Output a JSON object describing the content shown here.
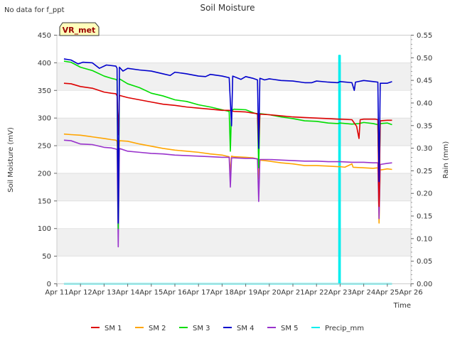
{
  "note": "No data for f_ppt",
  "chart_data": {
    "type": "line",
    "title": "Soil Moisture",
    "badge": "VR_met",
    "xlabel": "Time",
    "ylabel": "Soil Moisture (mV)",
    "y2label": "Rain (mm)",
    "xlim": [
      11,
      26
    ],
    "ylim": [
      0,
      450
    ],
    "y2lim": [
      0,
      0.55
    ],
    "x_ticks": [
      {
        "value": 11,
        "label": "Apr 11"
      },
      {
        "value": 12,
        "label": "Apr 12"
      },
      {
        "value": 13,
        "label": "Apr 13"
      },
      {
        "value": 14,
        "label": "Apr 14"
      },
      {
        "value": 15,
        "label": "Apr 15"
      },
      {
        "value": 16,
        "label": "Apr 16"
      },
      {
        "value": 17,
        "label": "Apr 17"
      },
      {
        "value": 18,
        "label": "Apr 18"
      },
      {
        "value": 19,
        "label": "Apr 19"
      },
      {
        "value": 20,
        "label": "Apr 20"
      },
      {
        "value": 21,
        "label": "Apr 21"
      },
      {
        "value": 22,
        "label": "Apr 22"
      },
      {
        "value": 23,
        "label": "Apr 23"
      },
      {
        "value": 24,
        "label": "Apr 24"
      },
      {
        "value": 25,
        "label": "Apr 25"
      },
      {
        "value": 26,
        "label": "Apr 26"
      }
    ],
    "y_ticks": [
      0,
      50,
      100,
      150,
      200,
      250,
      300,
      350,
      400,
      450
    ],
    "y2_ticks": [
      "0.00",
      "0.05",
      "0.10",
      "0.15",
      "0.20",
      "0.25",
      "0.30",
      "0.35",
      "0.40",
      "0.45",
      "0.50",
      "0.55"
    ],
    "series": [
      {
        "name": "SM 1",
        "color": "#dd0000",
        "axis": "left",
        "points": [
          [
            11.3,
            363
          ],
          [
            11.6,
            362
          ],
          [
            12.0,
            357
          ],
          [
            12.5,
            354
          ],
          [
            13.0,
            347
          ],
          [
            13.3,
            345
          ],
          [
            13.5,
            344
          ],
          [
            13.55,
            340
          ],
          [
            13.6,
            270
          ],
          [
            13.65,
            341
          ],
          [
            14.0,
            337
          ],
          [
            14.5,
            333
          ],
          [
            15.0,
            329
          ],
          [
            15.5,
            325
          ],
          [
            16.0,
            323
          ],
          [
            16.5,
            320
          ],
          [
            17.0,
            318
          ],
          [
            17.5,
            316
          ],
          [
            18.0,
            314
          ],
          [
            18.3,
            314
          ],
          [
            18.5,
            312
          ],
          [
            19.0,
            311
          ],
          [
            19.3,
            309
          ],
          [
            19.5,
            308
          ],
          [
            19.55,
            250
          ],
          [
            19.6,
            307
          ],
          [
            20.0,
            306
          ],
          [
            20.5,
            304
          ],
          [
            21.0,
            302
          ],
          [
            21.5,
            301
          ],
          [
            22.0,
            300
          ],
          [
            22.5,
            299
          ],
          [
            22.9,
            298
          ],
          [
            23.0,
            298
          ],
          [
            23.5,
            297
          ],
          [
            23.7,
            285
          ],
          [
            23.8,
            263
          ],
          [
            23.85,
            297
          ],
          [
            24.0,
            298
          ],
          [
            24.5,
            298
          ],
          [
            24.6,
            297
          ],
          [
            24.65,
            140
          ],
          [
            24.7,
            295
          ],
          [
            25.0,
            296
          ],
          [
            25.2,
            296
          ]
        ]
      },
      {
        "name": "SM 2",
        "color": "#ffa500",
        "axis": "left",
        "points": [
          [
            11.3,
            271
          ],
          [
            11.6,
            270
          ],
          [
            12.0,
            269
          ],
          [
            12.5,
            266
          ],
          [
            13.0,
            263
          ],
          [
            13.3,
            261
          ],
          [
            13.5,
            260
          ],
          [
            13.55,
            258
          ],
          [
            13.6,
            210
          ],
          [
            13.65,
            259
          ],
          [
            14.0,
            258
          ],
          [
            14.5,
            253
          ],
          [
            15.0,
            249
          ],
          [
            15.5,
            245
          ],
          [
            16.0,
            242
          ],
          [
            16.5,
            240
          ],
          [
            17.0,
            238
          ],
          [
            17.5,
            235
          ],
          [
            18.0,
            233
          ],
          [
            18.3,
            230
          ],
          [
            18.35,
            200
          ],
          [
            18.4,
            231
          ],
          [
            18.5,
            230
          ],
          [
            19.0,
            229
          ],
          [
            19.3,
            228
          ],
          [
            19.5,
            226
          ],
          [
            19.55,
            190
          ],
          [
            19.6,
            224
          ],
          [
            20.0,
            222
          ],
          [
            20.5,
            219
          ],
          [
            21.0,
            217
          ],
          [
            21.5,
            214
          ],
          [
            22.0,
            214
          ],
          [
            22.5,
            213
          ],
          [
            22.9,
            212
          ],
          [
            23.0,
            212
          ],
          [
            23.2,
            211
          ],
          [
            23.5,
            217
          ],
          [
            23.55,
            211
          ],
          [
            24.0,
            210
          ],
          [
            24.4,
            209
          ],
          [
            24.6,
            210
          ],
          [
            24.65,
            110
          ],
          [
            24.7,
            206
          ],
          [
            25.0,
            208
          ],
          [
            25.2,
            207
          ]
        ]
      },
      {
        "name": "SM 3",
        "color": "#00dd00",
        "axis": "left",
        "points": [
          [
            11.3,
            403
          ],
          [
            11.6,
            401
          ],
          [
            12.0,
            392
          ],
          [
            12.5,
            386
          ],
          [
            13.0,
            376
          ],
          [
            13.3,
            372
          ],
          [
            13.5,
            370
          ],
          [
            13.55,
            368
          ],
          [
            13.6,
            100
          ],
          [
            13.65,
            371
          ],
          [
            14.0,
            362
          ],
          [
            14.5,
            355
          ],
          [
            15.0,
            345
          ],
          [
            15.5,
            340
          ],
          [
            16.0,
            333
          ],
          [
            16.5,
            330
          ],
          [
            17.0,
            324
          ],
          [
            17.5,
            320
          ],
          [
            18.0,
            315
          ],
          [
            18.3,
            312
          ],
          [
            18.35,
            240
          ],
          [
            18.4,
            314
          ],
          [
            18.5,
            316
          ],
          [
            19.0,
            315
          ],
          [
            19.3,
            310
          ],
          [
            19.5,
            307
          ],
          [
            19.55,
            210
          ],
          [
            19.6,
            308
          ],
          [
            20.0,
            306
          ],
          [
            20.5,
            302
          ],
          [
            21.0,
            299
          ],
          [
            21.5,
            295
          ],
          [
            22.0,
            294
          ],
          [
            22.5,
            291
          ],
          [
            22.9,
            290
          ],
          [
            23.0,
            291
          ],
          [
            23.5,
            289
          ],
          [
            23.8,
            290
          ],
          [
            24.0,
            292
          ],
          [
            24.4,
            290
          ],
          [
            24.6,
            288
          ],
          [
            24.65,
            175
          ],
          [
            24.7,
            290
          ],
          [
            25.0,
            291
          ],
          [
            25.2,
            288
          ]
        ]
      },
      {
        "name": "SM 4",
        "color": "#0000cc",
        "axis": "left",
        "points": [
          [
            11.3,
            407
          ],
          [
            11.6,
            405
          ],
          [
            11.9,
            398
          ],
          [
            12.1,
            401
          ],
          [
            12.5,
            400
          ],
          [
            12.8,
            390
          ],
          [
            13.1,
            396
          ],
          [
            13.5,
            394
          ],
          [
            13.55,
            390
          ],
          [
            13.6,
            110
          ],
          [
            13.65,
            392
          ],
          [
            13.8,
            385
          ],
          [
            14.0,
            390
          ],
          [
            14.5,
            387
          ],
          [
            15.0,
            385
          ],
          [
            15.5,
            380
          ],
          [
            15.8,
            377
          ],
          [
            16.0,
            383
          ],
          [
            16.5,
            380
          ],
          [
            17.0,
            376
          ],
          [
            17.3,
            375
          ],
          [
            17.5,
            379
          ],
          [
            18.0,
            376
          ],
          [
            18.3,
            373
          ],
          [
            18.4,
            286
          ],
          [
            18.45,
            376
          ],
          [
            18.8,
            370
          ],
          [
            19.0,
            375
          ],
          [
            19.3,
            372
          ],
          [
            19.5,
            369
          ],
          [
            19.55,
            245
          ],
          [
            19.6,
            372
          ],
          [
            19.8,
            369
          ],
          [
            20.0,
            371
          ],
          [
            20.5,
            368
          ],
          [
            21.0,
            367
          ],
          [
            21.5,
            364
          ],
          [
            21.8,
            364
          ],
          [
            22.0,
            367
          ],
          [
            22.5,
            365
          ],
          [
            22.9,
            364
          ],
          [
            23.0,
            366
          ],
          [
            23.5,
            364
          ],
          [
            23.6,
            350
          ],
          [
            23.65,
            365
          ],
          [
            24.0,
            368
          ],
          [
            24.4,
            366
          ],
          [
            24.6,
            365
          ],
          [
            24.65,
            185
          ],
          [
            24.7,
            363
          ],
          [
            25.0,
            363
          ],
          [
            25.2,
            366
          ]
        ]
      },
      {
        "name": "SM 5",
        "color": "#9933cc",
        "axis": "left",
        "points": [
          [
            11.3,
            260
          ],
          [
            11.6,
            259
          ],
          [
            12.0,
            253
          ],
          [
            12.5,
            252
          ],
          [
            13.0,
            247
          ],
          [
            13.3,
            246
          ],
          [
            13.5,
            244
          ],
          [
            13.55,
            243
          ],
          [
            13.6,
            67
          ],
          [
            13.65,
            245
          ],
          [
            14.0,
            240
          ],
          [
            14.5,
            238
          ],
          [
            15.0,
            236
          ],
          [
            15.5,
            235
          ],
          [
            16.0,
            233
          ],
          [
            16.5,
            232
          ],
          [
            17.0,
            231
          ],
          [
            17.5,
            230
          ],
          [
            18.0,
            229
          ],
          [
            18.3,
            229
          ],
          [
            18.35,
            175
          ],
          [
            18.4,
            228
          ],
          [
            18.5,
            228
          ],
          [
            19.0,
            227
          ],
          [
            19.3,
            227
          ],
          [
            19.5,
            226
          ],
          [
            19.55,
            149
          ],
          [
            19.6,
            225
          ],
          [
            20.0,
            225
          ],
          [
            20.5,
            224
          ],
          [
            21.0,
            223
          ],
          [
            21.5,
            222
          ],
          [
            22.0,
            222
          ],
          [
            22.5,
            221
          ],
          [
            22.9,
            221
          ],
          [
            23.0,
            221
          ],
          [
            23.5,
            220
          ],
          [
            24.0,
            220
          ],
          [
            24.4,
            219
          ],
          [
            24.6,
            219
          ],
          [
            24.65,
            118
          ],
          [
            24.7,
            216
          ],
          [
            25.0,
            218
          ],
          [
            25.2,
            219
          ]
        ]
      },
      {
        "name": "Precip_mm",
        "color": "#00eeee",
        "axis": "right",
        "points": [
          [
            11.3,
            0
          ],
          [
            22.95,
            0
          ],
          [
            22.95,
            0.505
          ],
          [
            23.0,
            0.505
          ],
          [
            23.0,
            0
          ],
          [
            25.2,
            0
          ]
        ]
      }
    ]
  }
}
